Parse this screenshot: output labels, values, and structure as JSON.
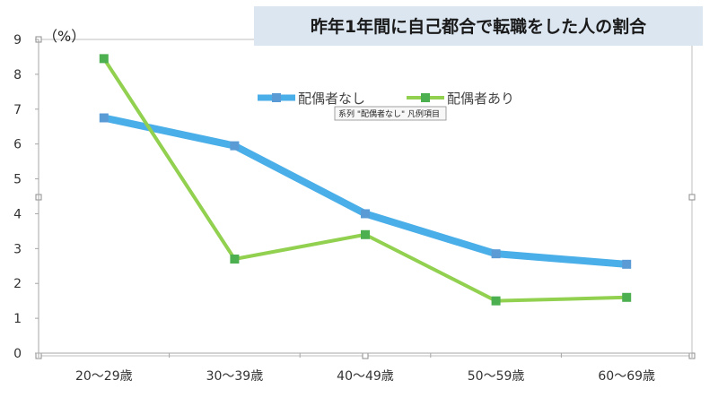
{
  "chart_data": {
    "type": "line",
    "title": "昨年1年間に自己都合で転職をした人の割合",
    "ylabel": "（%）",
    "xlabel": "",
    "categories": [
      "20〜29歳",
      "30〜39歳",
      "40〜49歳",
      "50〜59歳",
      "60〜69歳"
    ],
    "ylim": [
      0,
      9
    ],
    "yticks": [
      "0",
      "1",
      "2",
      "3",
      "4",
      "5",
      "6",
      "7",
      "8",
      "9"
    ],
    "grid": false,
    "legend_position": "top-center",
    "series": [
      {
        "name": "配偶者なし",
        "values": [
          6.75,
          5.95,
          4.0,
          2.85,
          2.55
        ],
        "color": "#4aaee8",
        "marker_color": "#5b9bd5"
      },
      {
        "name": "配偶者あり",
        "values": [
          8.45,
          2.7,
          3.4,
          1.5,
          1.6
        ],
        "color": "#92d050",
        "marker_color": "#4caf50"
      }
    ]
  },
  "tooltip": {
    "text": "系列 \"配偶者なし\" 凡例項目"
  },
  "colors": {
    "title_background": "#dce6f1",
    "axis": "#a6a6a6",
    "frame": "#bfbfbf"
  }
}
